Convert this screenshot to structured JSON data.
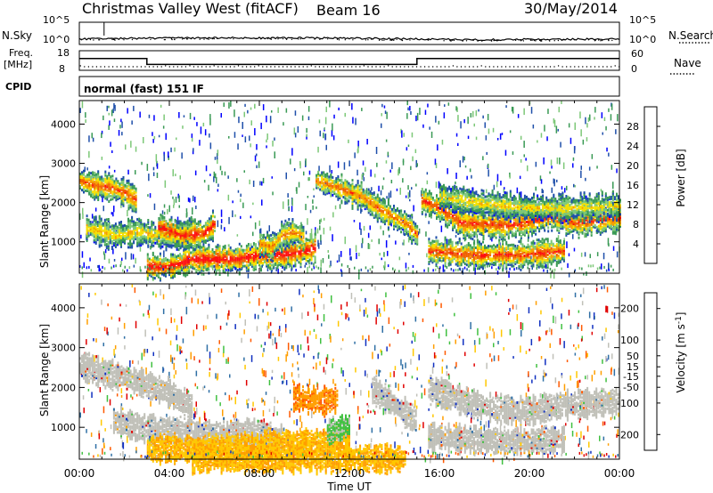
{
  "header": {
    "title": "Christmas Valley West (fitACF)",
    "beam": "Beam 16",
    "date": "30/May/2014"
  },
  "nsky_panel": {
    "left_label": "N.Sky",
    "right_label": "N.Search",
    "left_ticks": [
      "10^5",
      "10^0"
    ],
    "right_ticks": [
      "10^5",
      "10^0"
    ]
  },
  "freq_panel": {
    "left_label_1": "Freq.",
    "left_label_2": "[MHz]",
    "right_label": "Nave",
    "left_ticks": [
      "18",
      "8"
    ],
    "right_ticks": [
      "60",
      "0"
    ]
  },
  "cpid": {
    "label": "CPID",
    "value": "normal (fast) 151 IF"
  },
  "colors": {
    "power_scale": [
      "#0000ff",
      "#1f4faa",
      "#3a9a55",
      "#7dc878",
      "#f5e000",
      "#f5a000",
      "#f06000",
      "#ff1010"
    ],
    "velocity_scale": [
      "#e00000",
      "#ff5a00",
      "#ff9e00",
      "#ffc800",
      "#c0c0b8",
      "#40c040",
      "#2f6fa5",
      "#1030c0"
    ]
  },
  "chart_data": [
    {
      "type": "line",
      "name": "noise-panel",
      "ylim_log10": [
        0,
        5
      ],
      "yticks": [
        "10^5",
        "10^0"
      ],
      "x": [
        "00:00",
        "03:00",
        "06:00",
        "09:00",
        "12:00",
        "15:00",
        "18:00",
        "21:00",
        "24:00"
      ],
      "series": [
        {
          "values_log10": [
            1.0,
            1.2,
            1.3,
            1.3,
            1.2,
            1.0,
            0.8,
            0.9,
            1.0
          ]
        }
      ]
    },
    {
      "type": "line",
      "name": "freq-panel",
      "ylim": [
        8,
        18
      ],
      "yticks": [
        "18",
        "8"
      ],
      "y2ticks": [
        "60",
        "0"
      ],
      "series": [
        {
          "x_hours": [
            0,
            3.0,
            3.0,
            15.0,
            15.0,
            24.0
          ],
          "values": [
            14,
            14,
            11,
            11,
            14,
            14
          ]
        }
      ]
    },
    {
      "type": "heatmap",
      "name": "power",
      "ylabel": "Slant Range [km]",
      "xlabel": "Time UT",
      "ylim": [
        200,
        4600
      ],
      "xlim_hours": [
        0,
        24
      ],
      "yticks": [
        1000,
        2000,
        3000,
        4000
      ],
      "xticks": [
        "00:00",
        "04:00",
        "08:00",
        "12:00",
        "16:00",
        "20:00",
        "00:00"
      ],
      "colorbar": {
        "label": "Power [dB]",
        "ticks": [
          4,
          8,
          12,
          16,
          20,
          24,
          28
        ],
        "range": [
          0,
          32
        ]
      },
      "bands": [
        {
          "x": [
            0.0,
            0.5,
            1.0,
            1.5,
            2.0,
            2.5
          ],
          "range_km": [
            2600,
            2500,
            2450,
            2400,
            2300,
            2100
          ],
          "intensity": 0.8
        },
        {
          "x": [
            0.3,
            1.5,
            2.5,
            3.5,
            4.5,
            5.0
          ],
          "range_km": [
            1400,
            1200,
            1300,
            1200,
            1200,
            1300
          ],
          "intensity": 0.6
        },
        {
          "x": [
            3.0,
            4.0,
            5.0,
            6.0,
            7.0,
            8.0,
            9.0,
            10.0,
            10.5
          ],
          "range_km": [
            400,
            400,
            600,
            600,
            600,
            700,
            700,
            800,
            900
          ],
          "intensity": 0.95
        },
        {
          "x": [
            3.5,
            4.5,
            5.5,
            6.0
          ],
          "range_km": [
            1400,
            1200,
            1250,
            1500
          ],
          "intensity": 0.9
        },
        {
          "x": [
            8.0,
            8.5,
            9.0,
            9.5,
            10.0
          ],
          "range_km": [
            1000,
            900,
            1200,
            1300,
            1100
          ],
          "intensity": 0.7
        },
        {
          "x": [
            10.5,
            11.5,
            12.5,
            13.5,
            14.5,
            15.0
          ],
          "range_km": [
            2600,
            2400,
            2200,
            1800,
            1500,
            1200
          ],
          "intensity": 0.75
        },
        {
          "x": [
            15.2,
            16.0,
            16.5,
            17.0,
            18.0,
            19.0,
            20.0,
            21.0,
            22.0,
            23.0,
            24.0
          ],
          "range_km": [
            2100,
            1900,
            1700,
            1500,
            1500,
            1450,
            1550,
            1700,
            1500,
            1600,
            1650
          ],
          "intensity": 0.85
        },
        {
          "x": [
            15.5,
            16.5,
            17.5,
            18.5,
            19.5,
            20.5,
            21.5
          ],
          "range_km": [
            800,
            750,
            700,
            700,
            700,
            750,
            800
          ],
          "intensity": 0.85
        },
        {
          "x": [
            16.0,
            18.0,
            20.0,
            22.0,
            24.0
          ],
          "range_km": [
            2200,
            2000,
            1900,
            1900,
            1950
          ],
          "intensity": 0.55
        }
      ]
    },
    {
      "type": "heatmap",
      "name": "velocity",
      "ylabel": "Slant Range [km]",
      "xlabel": "Time UT",
      "ylim": [
        200,
        4600
      ],
      "xlim_hours": [
        0,
        24
      ],
      "yticks": [
        1000,
        2000,
        3000,
        4000
      ],
      "xticks": [
        "00:00",
        "04:00",
        "08:00",
        "12:00",
        "16:00",
        "20:00",
        "00:00"
      ],
      "colorbar": {
        "label": "Velocity [m s^-1]",
        "ticks": [
          -200,
          -100,
          -50,
          -15,
          15,
          50,
          100,
          200
        ],
        "range": [
          -250,
          250
        ]
      },
      "bands": [
        {
          "x": [
            0.0,
            1.0,
            2.0,
            3.0,
            4.0,
            5.0
          ],
          "range_km": [
            2600,
            2400,
            2300,
            2100,
            1900,
            1500
          ],
          "vel": 0
        },
        {
          "x": [
            1.5,
            3.0,
            5.0,
            7.0,
            9.0
          ],
          "range_km": [
            1200,
            1000,
            900,
            900,
            800
          ],
          "vel": 0
        },
        {
          "x": [
            3.0,
            5.0,
            7.0,
            9.0,
            11.0,
            12.0
          ],
          "range_km": [
            500,
            500,
            550,
            600,
            650,
            700
          ],
          "vel": -60
        },
        {
          "x": [
            9.5,
            10.5,
            11.0,
            11.5
          ],
          "range_km": [
            1800,
            1700,
            1700,
            1800
          ],
          "vel": -80
        },
        {
          "x": [
            11.0,
            11.5,
            12.0
          ],
          "range_km": [
            900,
            1000,
            1100
          ],
          "vel": 60
        },
        {
          "x": [
            13.0,
            14.0,
            15.0
          ],
          "range_km": [
            2000,
            1600,
            1200
          ],
          "vel": 0
        },
        {
          "x": [
            15.5,
            17.0,
            18.5,
            20.0,
            21.5,
            23.0,
            24.0
          ],
          "range_km": [
            2000,
            1700,
            1500,
            1450,
            1600,
            1650,
            1700
          ],
          "vel": 0
        },
        {
          "x": [
            15.5,
            17.0,
            18.5,
            20.0,
            21.5
          ],
          "range_km": [
            800,
            750,
            700,
            700,
            750
          ],
          "vel": 0
        },
        {
          "x": [
            5.0,
            7.0,
            9.0,
            11.0,
            13.0,
            14.5
          ],
          "range_km": [
            250,
            250,
            250,
            250,
            250,
            250
          ],
          "vel": -70
        }
      ]
    }
  ]
}
